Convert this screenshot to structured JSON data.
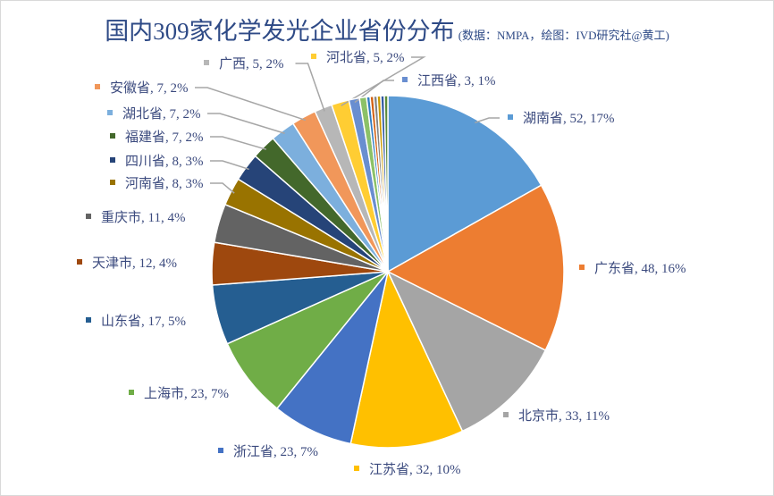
{
  "chart_data": {
    "type": "pie",
    "title": "国内309家化学发光企业省份分布",
    "subtitle": "(数据：NMPA，绘图：IVD研究社@黄工)",
    "total": 309,
    "start": "12 o'clock, clockwise",
    "slices": [
      {
        "name": "湖南省",
        "value": 52,
        "percent": "17%",
        "color": "#5B9BD5"
      },
      {
        "name": "广东省",
        "value": 48,
        "percent": "16%",
        "color": "#ED7D31"
      },
      {
        "name": "北京市",
        "value": 33,
        "percent": "11%",
        "color": "#A5A5A5"
      },
      {
        "name": "江苏省",
        "value": 32,
        "percent": "10%",
        "color": "#FFC000"
      },
      {
        "name": "浙江省",
        "value": 23,
        "percent": "7%",
        "color": "#4472C4"
      },
      {
        "name": "上海市",
        "value": 23,
        "percent": "7%",
        "color": "#70AD47"
      },
      {
        "name": "山东省",
        "value": 17,
        "percent": "5%",
        "color": "#255E91"
      },
      {
        "name": "天津市",
        "value": 12,
        "percent": "4%",
        "color": "#9E480E"
      },
      {
        "name": "重庆市",
        "value": 11,
        "percent": "4%",
        "color": "#636363"
      },
      {
        "name": "河南省",
        "value": 8,
        "percent": "3%",
        "color": "#997300"
      },
      {
        "name": "四川省",
        "value": 8,
        "percent": "3%",
        "color": "#264478"
      },
      {
        "name": "福建省",
        "value": 7,
        "percent": "2%",
        "color": "#43682B"
      },
      {
        "name": "湖北省",
        "value": 7,
        "percent": "2%",
        "color": "#7CAFDD"
      },
      {
        "name": "安徽省",
        "value": 7,
        "percent": "2%",
        "color": "#F1975A"
      },
      {
        "name": "广西",
        "value": 5,
        "percent": "2%",
        "color": "#B7B7B7"
      },
      {
        "name": "河北省",
        "value": 5,
        "percent": "2%",
        "color": "#FFCD33"
      },
      {
        "name": "江西省",
        "value": 3,
        "percent": "1%",
        "color": "#698ED0"
      },
      {
        "name": "",
        "value": 2,
        "percent": "",
        "color": "#8CC168"
      },
      {
        "name": "",
        "value": 1,
        "percent": "",
        "color": "#327DC2"
      },
      {
        "name": "",
        "value": 1,
        "percent": "",
        "color": "#D26012"
      },
      {
        "name": "",
        "value": 1,
        "percent": "",
        "color": "#848484"
      },
      {
        "name": "",
        "value": 1,
        "percent": "",
        "color": "#CC9A00"
      },
      {
        "name": "",
        "value": 1,
        "percent": "",
        "color": "#335AA1"
      },
      {
        "name": "",
        "value": 1,
        "percent": "",
        "color": "#5A8A39"
      }
    ]
  }
}
